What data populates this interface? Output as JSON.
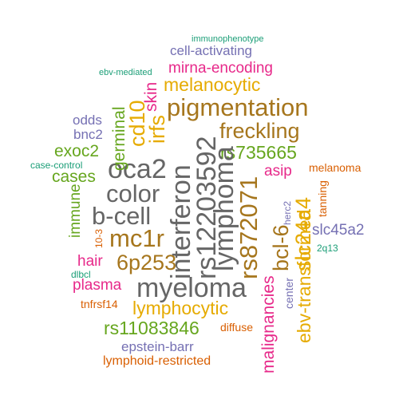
{
  "colors": {
    "teal": "#1b9e77",
    "orange": "#d95f02",
    "purple": "#7570b3",
    "magenta": "#e7298a",
    "green": "#66a61e",
    "gold": "#e6ab02",
    "brown": "#a6761d",
    "gray": "#666666"
  },
  "words": {
    "immunophenotype": {
      "text": "immunophenotype",
      "color": "#1b9e77"
    },
    "cell_activating": {
      "text": "cell-activating",
      "color": "#7570b3"
    },
    "mirna_encoding": {
      "text": "mirna-encoding",
      "color": "#e7298a"
    },
    "ebv_mediated": {
      "text": "ebv-mediated",
      "color": "#1b9e77"
    },
    "melanocytic": {
      "text": "melanocytic",
      "color": "#e6ab02"
    },
    "pigmentation": {
      "text": "pigmentation",
      "color": "#a6761d"
    },
    "freckling": {
      "text": "freckling",
      "color": "#a6761d"
    },
    "rs735665": {
      "text": "rs735665",
      "color": "#66a61e"
    },
    "odds": {
      "text": "odds",
      "color": "#7570b3"
    },
    "bnc2": {
      "text": "bnc2",
      "color": "#7570b3"
    },
    "exoc2": {
      "text": "exoc2",
      "color": "#66a61e"
    },
    "case_control": {
      "text": "case-control",
      "color": "#1b9e77"
    },
    "cases": {
      "text": "cases",
      "color": "#66a61e"
    },
    "oca2": {
      "text": "oca2",
      "color": "#666666"
    },
    "color": {
      "text": "color",
      "color": "#666666"
    },
    "b_cell": {
      "text": "b-cell",
      "color": "#666666"
    },
    "mc1r": {
      "text": "mc1r",
      "color": "#a6761d"
    },
    "6p253": {
      "text": "6p253",
      "color": "#a6761d"
    },
    "hair": {
      "text": "hair",
      "color": "#e7298a"
    },
    "dlbcl": {
      "text": "dlbcl",
      "color": "#1b9e77"
    },
    "plasma": {
      "text": "plasma",
      "color": "#e7298a"
    },
    "myeloma": {
      "text": "myeloma",
      "color": "#666666"
    },
    "tnfrsf14": {
      "text": "tnfrsf14",
      "color": "#d95f02"
    },
    "lymphocytic": {
      "text": "lymphocytic",
      "color": "#e6ab02"
    },
    "rs11083846": {
      "text": "rs11083846",
      "color": "#66a61e"
    },
    "diffuse": {
      "text": "diffuse",
      "color": "#d95f02"
    },
    "epstein_barr": {
      "text": "epstein-barr",
      "color": "#7570b3"
    },
    "lymphoid_restricted": {
      "text": "lymphoid-restricted",
      "color": "#d95f02"
    },
    "asip": {
      "text": "asip",
      "color": "#e7298a"
    },
    "melanoma": {
      "text": "melanoma",
      "color": "#d95f02"
    },
    "slc45a2": {
      "text": "slc45a2",
      "color": "#7570b3"
    },
    "2q13": {
      "text": "2q13",
      "color": "#1b9e77"
    },
    "germinal": {
      "text": "germinal",
      "color": "#66a61e"
    },
    "skin": {
      "text": "skin",
      "color": "#e7298a"
    },
    "cd10": {
      "text": "cd10",
      "color": "#e6ab02"
    },
    "irfs": {
      "text": "irfs",
      "color": "#e6ab02"
    },
    "interferon": {
      "text": "interferon",
      "color": "#666666"
    },
    "rs12203592": {
      "text": "rs12203592",
      "color": "#666666"
    },
    "lymphoma": {
      "text": "lymphoma",
      "color": "#666666"
    },
    "rs872071": {
      "text": "rs872071",
      "color": "#a6761d"
    },
    "bcl_6": {
      "text": "bcl-6",
      "color": "#a6761d"
    },
    "slc24a4": {
      "text": "slc24a4",
      "color": "#e6ab02"
    },
    "herc2": {
      "text": "herc2",
      "color": "#7570b3"
    },
    "tanning": {
      "text": "tanning",
      "color": "#d95f02"
    },
    "immune": {
      "text": "immune",
      "color": "#66a61e"
    },
    "ten_3": {
      "text": "10-3",
      "color": "#d95f02"
    },
    "malignancies": {
      "text": "malignancies",
      "color": "#e7298a"
    },
    "center": {
      "text": "center",
      "color": "#7570b3"
    },
    "ebv_transformed": {
      "text": "ebv-transformed",
      "color": "#e6ab02"
    }
  }
}
